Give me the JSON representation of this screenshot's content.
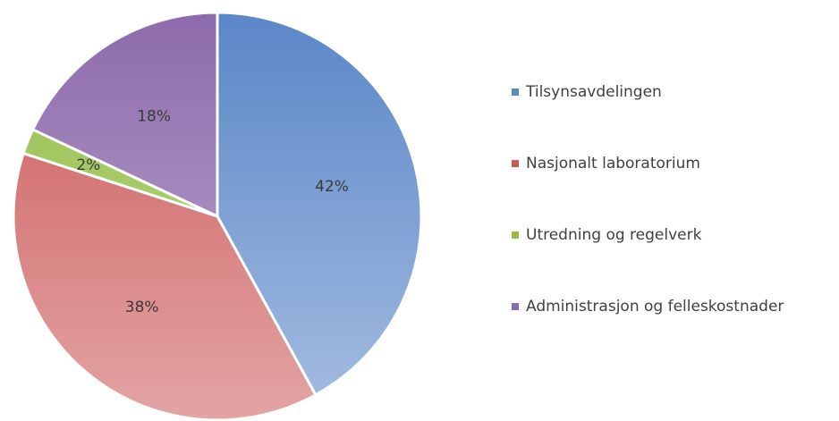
{
  "chart_data": {
    "type": "pie",
    "categories": [
      "Tilsynsavdelingen",
      "Nasjonalt laboratorium",
      "Utredning og regelverk",
      "Administrasjon og felleskostnader"
    ],
    "values": [
      42,
      38,
      2,
      18
    ],
    "value_labels": [
      "42%",
      "38%",
      "2%",
      "18%"
    ],
    "colors": [
      "#5b86c8",
      "#cc5a5a",
      "#92bd45",
      "#8d6aac"
    ],
    "legend": "right"
  }
}
